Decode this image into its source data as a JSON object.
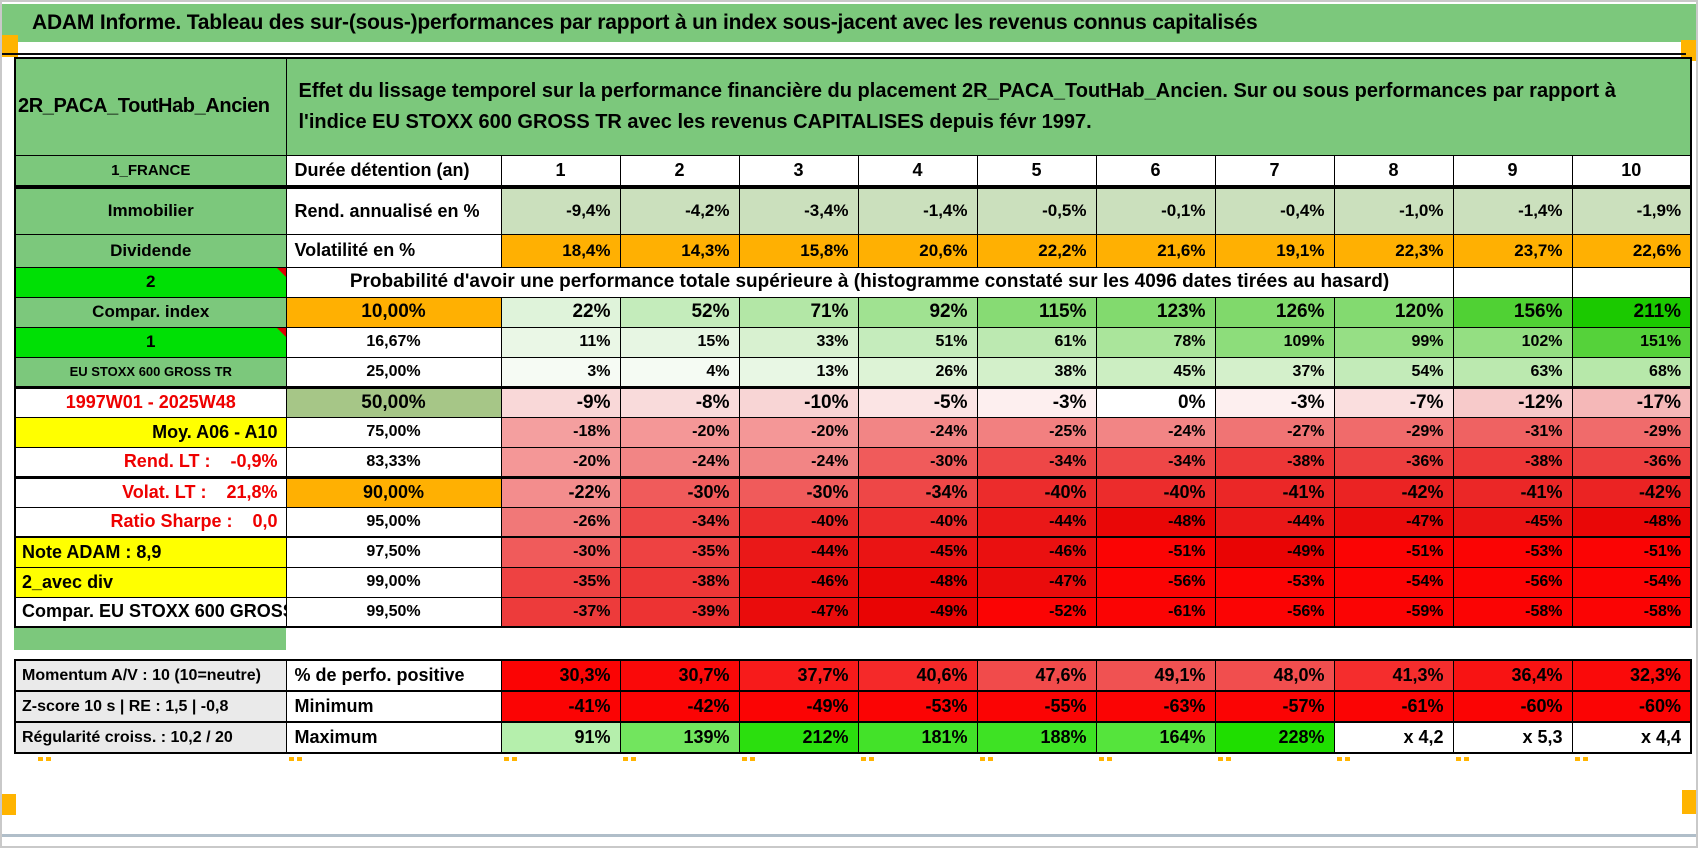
{
  "title": "ADAM Informe. Tableau des sur-(sous-)performances par rapport à un index sous-jacent avec les revenus connus capitalisés",
  "header": {
    "product": "2R_PACA_ToutHab_Ancien",
    "description": "Effet du lissage temporel sur la performance financière du placement 2R_PACA_ToutHab_Ancien. Sur ou sous performances par rapport à l'indice EU STOXX 600 GROSS TR avec les revenus CAPITALISES depuis févr 1997."
  },
  "colors": {
    "header_green": "#7cc87c",
    "bright_green": "#00e005",
    "orange": "#ffb002",
    "yellow": "#ffff00",
    "sage": "#a6c687",
    "stat_green": "#cbe0bd",
    "gray_label": "#eaeaea",
    "red_text": "#ee0000",
    "marker_orange": "#ffb400",
    "bottom_strip": "#b0bec9"
  },
  "duration_header": {
    "label": "1_FRANCE",
    "desc": "Durée détention (an)",
    "years": [
      "1",
      "2",
      "3",
      "4",
      "5",
      "6",
      "7",
      "8",
      "9",
      "10"
    ]
  },
  "stat_rows": [
    {
      "label": "Immobilier",
      "desc": "Rend. annualisé en %",
      "bg": "#cbe0bd",
      "values": [
        "-9,4%",
        "-4,2%",
        "-3,4%",
        "-1,4%",
        "-0,5%",
        "-0,1%",
        "-0,4%",
        "-1,0%",
        "-1,4%",
        "-1,9%"
      ]
    },
    {
      "label": "Dividende",
      "desc": "Volatilité en %",
      "bg": "#ffb002",
      "values": [
        "18,4%",
        "14,3%",
        "15,8%",
        "20,6%",
        "22,2%",
        "21,6%",
        "19,1%",
        "22,3%",
        "23,7%",
        "22,6%"
      ]
    }
  ],
  "probability_banner": {
    "label": "2",
    "text": "Probabilité d'avoir une performance totale supérieure à (histogramme constaté sur les 4096 dates tirées au hasard)"
  },
  "quantile_rows": [
    {
      "label": "Compar. index",
      "label_style": "green",
      "pct": "10,00%",
      "pct_style": "orange",
      "em": "big",
      "values": [
        "22%",
        "52%",
        "71%",
        "92%",
        "115%",
        "123%",
        "126%",
        "120%",
        "156%",
        "211%"
      ],
      "bg": [
        "#dff3da",
        "#c4ecbb",
        "#b3e7a6",
        "#a0e291",
        "#87db74",
        "#82da6e",
        "#80d96b",
        "#83da70",
        "#50d134",
        "#1bc900"
      ]
    },
    {
      "label": "1",
      "label_style": "bright-note",
      "pct": "16,67%",
      "pct_style": "white",
      "values": [
        "11%",
        "15%",
        "33%",
        "51%",
        "61%",
        "78%",
        "109%",
        "99%",
        "102%",
        "151%"
      ],
      "bg": [
        "#eaf7e6",
        "#e7f6e3",
        "#d8f1d0",
        "#c5ecbc",
        "#bce9b1",
        "#aae59b",
        "#8ddd7b",
        "#96df85",
        "#94df82",
        "#55d23a"
      ]
    },
    {
      "label": "EU STOXX 600 GROSS TR",
      "label_style": "green-small",
      "pct": "25,00%",
      "pct_style": "white",
      "values": [
        "3%",
        "4%",
        "13%",
        "26%",
        "38%",
        "45%",
        "37%",
        "54%",
        "63%",
        "68%"
      ],
      "bg": [
        "#f6fbf4",
        "#f5fbf3",
        "#e8f7e4",
        "#ddf3d6",
        "#d3f0ca",
        "#cceec2",
        "#d4f0cb",
        "#c3ebb9",
        "#bbe9af",
        "#b7e8aa"
      ]
    },
    {
      "label": "1997W01 - 2025W48",
      "label_style": "red-center",
      "pct": "50,00%",
      "pct_style": "sage",
      "em": "big",
      "thick": 3,
      "values": [
        "-9%",
        "-8%",
        "-10%",
        "-5%",
        "-3%",
        "0%",
        "-3%",
        "-7%",
        "-12%",
        "-17%"
      ],
      "bg": [
        "#f9d8d8",
        "#f9dbdb",
        "#f8d5d5",
        "#fbe4e4",
        "#fdefef",
        "#ffffff",
        "#fdefef",
        "#fadede",
        "#f7caca",
        "#f5b8b8"
      ]
    },
    {
      "label": "Moy. A06 - A10",
      "label_style": "yellow-right",
      "pct": "75,00%",
      "pct_style": "white",
      "values": [
        "-18%",
        "-20%",
        "-20%",
        "-24%",
        "-25%",
        "-24%",
        "-27%",
        "-29%",
        "-31%",
        "-29%"
      ],
      "bg": [
        "#f49f9f",
        "#f49797",
        "#f49797",
        "#f28585",
        "#f28080",
        "#f28585",
        "#f07474",
        "#f06b6b",
        "#ef6262",
        "#f06b6b"
      ]
    },
    {
      "label": "Rend. LT :    -0,9%",
      "label_style": "red-right",
      "pct": "83,33%",
      "pct_style": "white",
      "values": [
        "-20%",
        "-24%",
        "-24%",
        "-30%",
        "-34%",
        "-34%",
        "-38%",
        "-36%",
        "-38%",
        "-36%"
      ],
      "bg": [
        "#f49797",
        "#f28585",
        "#f28585",
        "#f05b5b",
        "#ee4747",
        "#ee4747",
        "#ed3737",
        "#ed3f3f",
        "#ed3737",
        "#ed3f3f"
      ]
    },
    {
      "label": "Volat. LT :    21,8%",
      "label_style": "red-right",
      "pct": "90,00%",
      "pct_style": "orange",
      "em": "mid",
      "thick": 3,
      "values": [
        "-22%",
        "-30%",
        "-30%",
        "-34%",
        "-40%",
        "-40%",
        "-41%",
        "-42%",
        "-41%",
        "-42%"
      ],
      "bg": [
        "#f38d8d",
        "#f05b5b",
        "#f05b5b",
        "#ee4747",
        "#ec2c2c",
        "#ec2c2c",
        "#eb2727",
        "#eb2323",
        "#eb2727",
        "#eb2323"
      ]
    },
    {
      "label": "Ratio Sharpe :    0,0",
      "label_style": "red-right",
      "pct": "95,00%",
      "pct_style": "white",
      "values": [
        "-26%",
        "-34%",
        "-40%",
        "-40%",
        "-44%",
        "-48%",
        "-44%",
        "-47%",
        "-45%",
        "-48%"
      ],
      "bg": [
        "#f17878",
        "#ee4747",
        "#ec2c2c",
        "#ec2c2c",
        "#ea1818",
        "#e90707",
        "#ea1818",
        "#ea0c0c",
        "#ea1414",
        "#e90707"
      ]
    },
    {
      "label": "Note ADAM : 8,9",
      "label_style": "yellow-left",
      "pct": "97,50%",
      "pct_style": "white",
      "thick": 2,
      "values": [
        "-30%",
        "-35%",
        "-44%",
        "-45%",
        "-46%",
        "-51%",
        "-49%",
        "-51%",
        "-53%",
        "-51%"
      ],
      "bg": [
        "#f05b5b",
        "#ee4242",
        "#ea1818",
        "#ea1414",
        "#ea1010",
        "#fb0404",
        "#e90404",
        "#fb0404",
        "#fb0404",
        "#fb0404"
      ]
    },
    {
      "label": "2_avec div",
      "label_style": "yellow-left",
      "pct": "99,00%",
      "pct_style": "white",
      "values": [
        "-35%",
        "-38%",
        "-46%",
        "-48%",
        "-47%",
        "-56%",
        "-53%",
        "-54%",
        "-56%",
        "-54%"
      ],
      "bg": [
        "#ee4242",
        "#ed3737",
        "#ea1010",
        "#e90707",
        "#ea0c0c",
        "#fb0404",
        "#fb0404",
        "#fb0404",
        "#fb0404",
        "#fb0404"
      ]
    },
    {
      "label": "Compar. EU STOXX 600 GROSS TR",
      "label_style": "white-left",
      "pct": "99,50%",
      "pct_style": "white",
      "values": [
        "-37%",
        "-39%",
        "-47%",
        "-49%",
        "-52%",
        "-61%",
        "-56%",
        "-59%",
        "-58%",
        "-58%"
      ],
      "bg": [
        "#ed3b3b",
        "#ed3333",
        "#ea0c0c",
        "#e90404",
        "#fb0404",
        "#fb0404",
        "#fb0404",
        "#fb0404",
        "#fb0404",
        "#fb0404"
      ]
    }
  ],
  "footer_rows": [
    {
      "label": "Momentum A/V : 10 (10=neutre)",
      "desc": "% de perfo. positive",
      "values": [
        "30,3%",
        "30,7%",
        "37,7%",
        "40,6%",
        "47,6%",
        "49,1%",
        "48,0%",
        "41,3%",
        "36,4%",
        "32,3%"
      ],
      "bg": [
        "#fb0404",
        "#fa0909",
        "#f71b1b",
        "#f52929",
        "#f14b4b",
        "#f05252",
        "#f14e4e",
        "#f52d2d",
        "#f81313",
        "#fa0a0a"
      ]
    },
    {
      "label": "Z-score 10 s | RE : 1,5 | -0,8",
      "desc": "Minimum",
      "values": [
        "-41%",
        "-42%",
        "-49%",
        "-53%",
        "-55%",
        "-63%",
        "-57%",
        "-61%",
        "-60%",
        "-60%"
      ],
      "bg": [
        "#fb0404",
        "#fb0404",
        "#fb0404",
        "#fb0404",
        "#fb0404",
        "#fb0404",
        "#fb0404",
        "#fb0404",
        "#fb0404",
        "#fb0404"
      ]
    },
    {
      "label": "Régularité croiss. : 10,2 / 20",
      "desc": "Maximum",
      "values": [
        "91%",
        "139%",
        "212%",
        "181%",
        "188%",
        "164%",
        "228%",
        "x 4,2",
        "x 5,3",
        "x 4,4"
      ],
      "bg": [
        "#b5efac",
        "#72e55e",
        "#2bdf0e",
        "#43e229",
        "#3ee224",
        "#55e43c",
        "#1fde00",
        "#ffffff",
        "#ffffff",
        "#ffffff"
      ]
    }
  ]
}
